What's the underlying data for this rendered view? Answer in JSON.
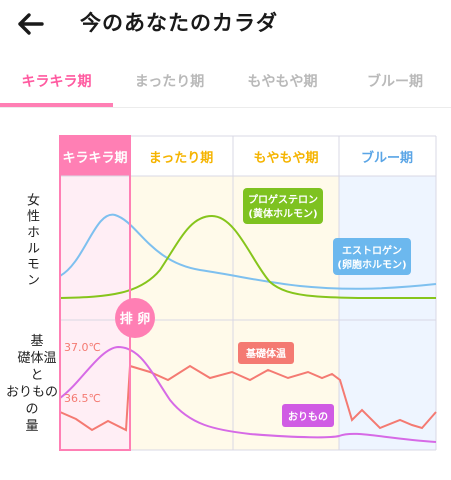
{
  "header": {
    "title": "今のあなたのカラダ",
    "back_icon": "arrow-left-icon"
  },
  "tabs": [
    {
      "label": "キラキラ期",
      "active": true
    },
    {
      "label": "まったり期",
      "active": false
    },
    {
      "label": "もやもや期",
      "active": false
    },
    {
      "label": "ブルー期",
      "active": false
    }
  ],
  "chart": {
    "phases": [
      "キラキラ期",
      "まったり期",
      "もやもや期",
      "ブルー期"
    ],
    "phase_colors": [
      "#ff7fb4",
      "#f5b400",
      "#f5b400",
      "#5aa5e6"
    ],
    "phase_bg": [
      "#ffeef5",
      "#fffaea",
      "#fffaea",
      "#eef5ff"
    ],
    "ovulation_label": "排 卵",
    "hormone_axis_label": "女性ホルモン",
    "discharge_axis_label": [
      "基",
      "礎体温と",
      "おりものの",
      "量"
    ],
    "temp_high": "37.0℃",
    "temp_low": "36.5℃",
    "progesterone_label": [
      "プロゲステロン",
      "(黄体ホルモン)"
    ],
    "estrogen_label": [
      "エストロゲン",
      "(卵胞ホルモン)"
    ],
    "bbt_label": "基礎体温",
    "discharge_label": "おりもの",
    "colors": {
      "estrogen": "#7ec0ef",
      "progesterone": "#86c51c",
      "bbt": "#f47a72",
      "discharge": "#d66ae6",
      "accent": "#ff7fb4"
    }
  }
}
